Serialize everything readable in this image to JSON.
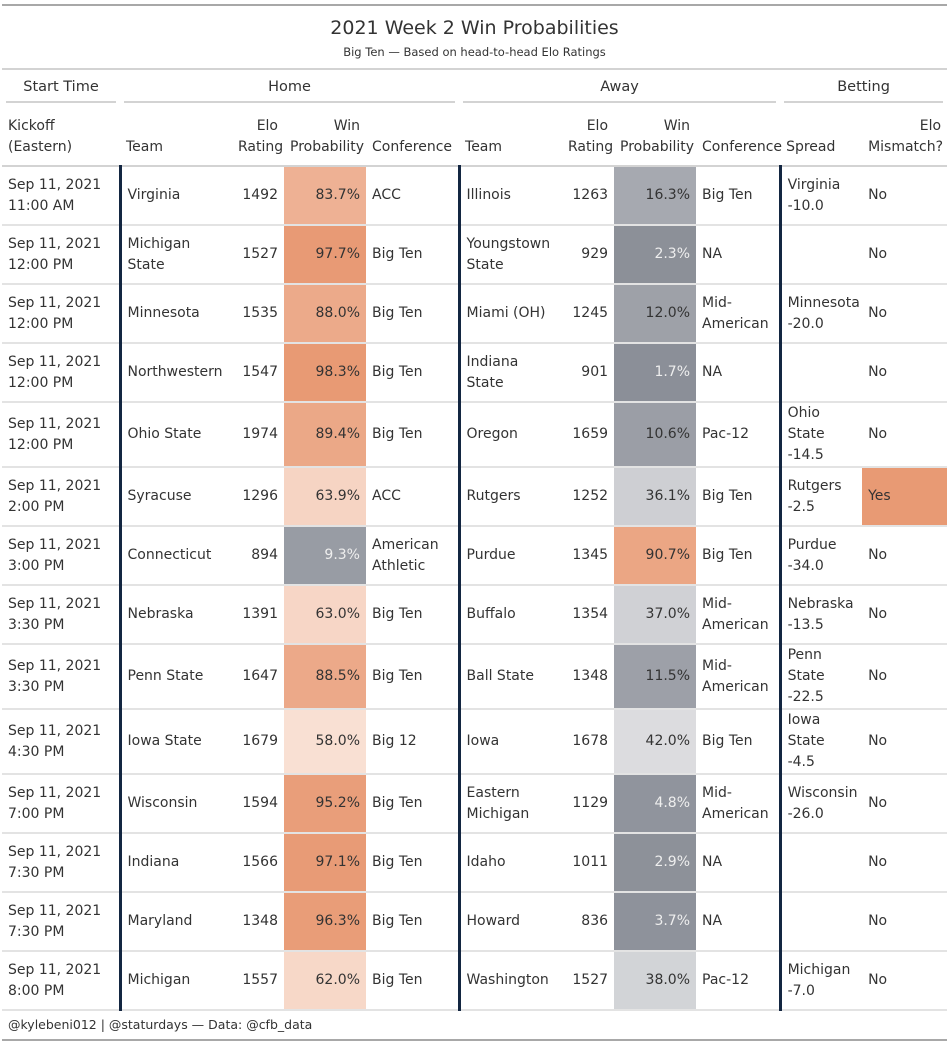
{
  "chart_data": {
    "type": "table",
    "title": "2021 Week 2 Win Probabilities",
    "subtitle": "Big Ten — Based on head-to-head Elo Ratings",
    "spanners": [
      "Start Time",
      "Home",
      "Away",
      "Betting"
    ],
    "columns": {
      "kickoff": [
        "Kickoff",
        "(Eastern)"
      ],
      "home_team": "Team",
      "home_elo": [
        "Elo",
        "Rating"
      ],
      "home_prob": [
        "Win",
        "Probability"
      ],
      "home_conf": "Conference",
      "away_team": "Team",
      "away_elo": [
        "Elo",
        "Rating"
      ],
      "away_prob": [
        "Win",
        "Probability"
      ],
      "away_conf": "Conference",
      "spread": "Spread",
      "mismatch": [
        "Elo",
        "Mismatch?"
      ]
    },
    "rows": [
      {
        "date": "Sep 11, 2021",
        "time": "11:00 AM",
        "home_team": "Virginia",
        "home_elo": 1492,
        "home_prob": "83.7%",
        "home_conf": "ACC",
        "away_team": "Illinois",
        "away_elo": 1263,
        "away_prob": "16.3%",
        "away_conf": "Big Ten",
        "spread_team": "Virginia",
        "spread_value": "-10.0",
        "mismatch": "No"
      },
      {
        "date": "Sep 11, 2021",
        "time": "12:00 PM",
        "home_team": "Michigan State",
        "home_elo": 1527,
        "home_prob": "97.7%",
        "home_conf": "Big Ten",
        "away_team": "Youngstown State",
        "away_elo": 929,
        "away_prob": "2.3%",
        "away_conf": "NA",
        "spread_team": "",
        "spread_value": "",
        "mismatch": "No"
      },
      {
        "date": "Sep 11, 2021",
        "time": "12:00 PM",
        "home_team": "Minnesota",
        "home_elo": 1535,
        "home_prob": "88.0%",
        "home_conf": "Big Ten",
        "away_team": "Miami (OH)",
        "away_elo": 1245,
        "away_prob": "12.0%",
        "away_conf": "Mid-American",
        "spread_team": "Minnesota",
        "spread_value": "-20.0",
        "mismatch": "No"
      },
      {
        "date": "Sep 11, 2021",
        "time": "12:00 PM",
        "home_team": "Northwestern",
        "home_elo": 1547,
        "home_prob": "98.3%",
        "home_conf": "Big Ten",
        "away_team": "Indiana State",
        "away_elo": 901,
        "away_prob": "1.7%",
        "away_conf": "NA",
        "spread_team": "",
        "spread_value": "",
        "mismatch": "No"
      },
      {
        "date": "Sep 11, 2021",
        "time": "12:00 PM",
        "home_team": "Ohio State",
        "home_elo": 1974,
        "home_prob": "89.4%",
        "home_conf": "Big Ten",
        "away_team": "Oregon",
        "away_elo": 1659,
        "away_prob": "10.6%",
        "away_conf": "Pac-12",
        "spread_team": "Ohio State",
        "spread_value": "-14.5",
        "mismatch": "No"
      },
      {
        "date": "Sep 11, 2021",
        "time": "2:00 PM",
        "home_team": "Syracuse",
        "home_elo": 1296,
        "home_prob": "63.9%",
        "home_conf": "ACC",
        "away_team": "Rutgers",
        "away_elo": 1252,
        "away_prob": "36.1%",
        "away_conf": "Big Ten",
        "spread_team": "Rutgers",
        "spread_value": "-2.5",
        "mismatch": "Yes"
      },
      {
        "date": "Sep 11, 2021",
        "time": "3:00 PM",
        "home_team": "Connecticut",
        "home_elo": 894,
        "home_prob": "9.3%",
        "home_conf": "American Athletic",
        "away_team": "Purdue",
        "away_elo": 1345,
        "away_prob": "90.7%",
        "away_conf": "Big Ten",
        "spread_team": "Purdue",
        "spread_value": "-34.0",
        "mismatch": "No"
      },
      {
        "date": "Sep 11, 2021",
        "time": "3:30 PM",
        "home_team": "Nebraska",
        "home_elo": 1391,
        "home_prob": "63.0%",
        "home_conf": "Big Ten",
        "away_team": "Buffalo",
        "away_elo": 1354,
        "away_prob": "37.0%",
        "away_conf": "Mid-American",
        "spread_team": "Nebraska",
        "spread_value": "-13.5",
        "mismatch": "No"
      },
      {
        "date": "Sep 11, 2021",
        "time": "3:30 PM",
        "home_team": "Penn State",
        "home_elo": 1647,
        "home_prob": "88.5%",
        "home_conf": "Big Ten",
        "away_team": "Ball State",
        "away_elo": 1348,
        "away_prob": "11.5%",
        "away_conf": "Mid-American",
        "spread_team": "Penn State",
        "spread_value": "-22.5",
        "mismatch": "No"
      },
      {
        "date": "Sep 11, 2021",
        "time": "4:30 PM",
        "home_team": "Iowa State",
        "home_elo": 1679,
        "home_prob": "58.0%",
        "home_conf": "Big 12",
        "away_team": "Iowa",
        "away_elo": 1678,
        "away_prob": "42.0%",
        "away_conf": "Big Ten",
        "spread_team": "Iowa State",
        "spread_value": "-4.5",
        "mismatch": "No"
      },
      {
        "date": "Sep 11, 2021",
        "time": "7:00 PM",
        "home_team": "Wisconsin",
        "home_elo": 1594,
        "home_prob": "95.2%",
        "home_conf": "Big Ten",
        "away_team": "Eastern Michigan",
        "away_elo": 1129,
        "away_prob": "4.8%",
        "away_conf": "Mid-American",
        "spread_team": "Wisconsin",
        "spread_value": "-26.0",
        "mismatch": "No"
      },
      {
        "date": "Sep 11, 2021",
        "time": "7:30 PM",
        "home_team": "Indiana",
        "home_elo": 1566,
        "home_prob": "97.1%",
        "home_conf": "Big Ten",
        "away_team": "Idaho",
        "away_elo": 1011,
        "away_prob": "2.9%",
        "away_conf": "NA",
        "spread_team": "",
        "spread_value": "",
        "mismatch": "No"
      },
      {
        "date": "Sep 11, 2021",
        "time": "7:30 PM",
        "home_team": "Maryland",
        "home_elo": 1348,
        "home_prob": "96.3%",
        "home_conf": "Big Ten",
        "away_team": "Howard",
        "away_elo": 836,
        "away_prob": "3.7%",
        "away_conf": "NA",
        "spread_team": "",
        "spread_value": "",
        "mismatch": "No"
      },
      {
        "date": "Sep 11, 2021",
        "time": "8:00 PM",
        "home_team": "Michigan",
        "home_elo": 1557,
        "home_prob": "62.0%",
        "home_conf": "Big Ten",
        "away_team": "Washington",
        "away_elo": 1527,
        "away_prob": "38.0%",
        "away_conf": "Pac-12",
        "spread_team": "Michigan",
        "spread_value": "-7.0",
        "mismatch": "No"
      }
    ],
    "color_scale": {
      "high": "#e89a74",
      "mid_light": "#fef3ee",
      "low": "#8b8f98",
      "low_light": "#f2f2f3",
      "mismatch_yes": "#e89a74",
      "separator": "#132641"
    },
    "footer": "@kylebeni012 | @staturdays — Data: @cfb_data"
  }
}
